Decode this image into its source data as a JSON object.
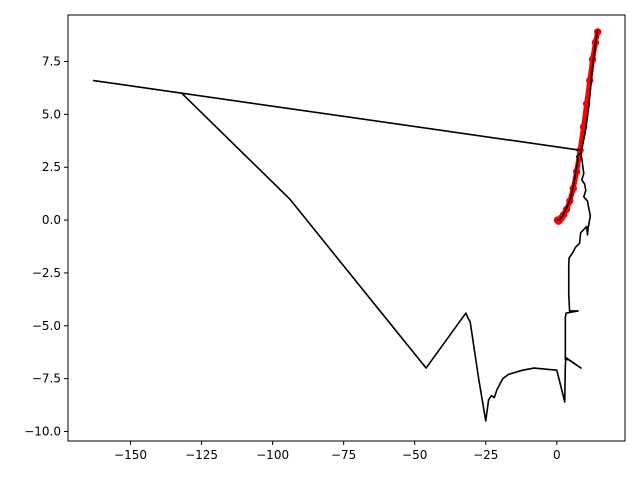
{
  "chart_data": {
    "type": "line",
    "title": "",
    "xlabel": "",
    "ylabel": "",
    "xlim": [
      -172,
      24
    ],
    "ylim": [
      -10.45,
      9.7
    ],
    "grid": false,
    "x_ticks": [
      -150,
      -125,
      -100,
      -75,
      -50,
      -25,
      0
    ],
    "x_tick_labels": [
      "−150",
      "−125",
      "−100",
      "−75",
      "−50",
      "−25",
      "0"
    ],
    "y_ticks": [
      -10.0,
      -7.5,
      -5.0,
      -2.5,
      0.0,
      2.5,
      5.0,
      7.5
    ],
    "y_tick_labels": [
      "−10.0",
      "−7.5",
      "−5.0",
      "−2.5",
      "0.0",
      "2.5",
      "5.0",
      "7.5"
    ],
    "series": [
      {
        "color": "#ff0000",
        "kind": "thick-line-with-markers",
        "points": [
          [
            0.2,
            0.0
          ],
          [
            0.6,
            -0.05
          ],
          [
            1.0,
            0.0
          ],
          [
            1.6,
            0.1
          ],
          [
            2.4,
            0.25
          ],
          [
            3.4,
            0.5
          ],
          [
            4.6,
            0.9
          ],
          [
            5.8,
            1.5
          ],
          [
            7.0,
            2.3
          ],
          [
            8.2,
            3.3
          ],
          [
            9.4,
            4.4
          ],
          [
            10.5,
            5.5
          ],
          [
            11.6,
            6.6
          ],
          [
            12.6,
            7.6
          ],
          [
            13.6,
            8.4
          ],
          [
            14.4,
            8.9
          ]
        ]
      },
      {
        "color": "#000000",
        "kind": "line",
        "points": [
          [
            0.0,
            0.0
          ],
          [
            1.0,
            0.0
          ],
          [
            2.0,
            0.2
          ],
          [
            3.5,
            0.6
          ],
          [
            4.8,
            1.0
          ],
          [
            5.8,
            1.6
          ],
          [
            6.7,
            2.3
          ],
          [
            7.5,
            2.9
          ],
          [
            7.0,
            3.0
          ],
          [
            8.5,
            3.2
          ],
          [
            9.5,
            2.2
          ],
          [
            8.8,
            1.9
          ],
          [
            9.8,
            1.7
          ],
          [
            10.2,
            1.4
          ],
          [
            9.5,
            1.1
          ],
          [
            10.8,
            0.9
          ],
          [
            11.2,
            0.6
          ],
          [
            11.8,
            0.2
          ],
          [
            11.0,
            -0.4
          ],
          [
            10.8,
            -0.7
          ],
          [
            10.5,
            -0.3
          ],
          [
            9.8,
            -0.4
          ],
          [
            8.4,
            -0.6
          ],
          [
            8.0,
            -1.1
          ],
          [
            6.5,
            -1.3
          ],
          [
            5.8,
            -1.5
          ],
          [
            4.3,
            -1.8
          ],
          [
            4.2,
            -2.2
          ],
          [
            4.2,
            -3.5
          ],
          [
            4.5,
            -4.3
          ],
          [
            7.5,
            -4.3
          ],
          [
            3.3,
            -4.4
          ],
          [
            3.0,
            -4.6
          ],
          [
            3.0,
            -6.6
          ],
          [
            4.1,
            -6.6
          ],
          [
            8.5,
            -7.0
          ],
          [
            3.2,
            -6.5
          ],
          [
            3.0,
            -6.9
          ],
          [
            2.8,
            -8.6
          ],
          [
            0.0,
            -7.1
          ],
          [
            -8.0,
            -7.0
          ],
          [
            -12.0,
            -7.1
          ],
          [
            -17.0,
            -7.3
          ],
          [
            -19.0,
            -7.5
          ],
          [
            -21.0,
            -8.0
          ],
          [
            -22.0,
            -8.4
          ],
          [
            -23.0,
            -8.3
          ],
          [
            -24.0,
            -8.5
          ],
          [
            -25.0,
            -9.5
          ],
          [
            -27.5,
            -7.5
          ],
          [
            -30.5,
            -4.8
          ],
          [
            -31.0,
            -4.7
          ],
          [
            -32.0,
            -4.4
          ],
          [
            -46.0,
            -7.0
          ],
          [
            -94.0,
            1.0
          ],
          [
            -132.0,
            6.0
          ],
          [
            -163.0,
            6.6
          ],
          [
            8.5,
            3.3
          ],
          [
            9.0,
            3.5
          ],
          [
            9.8,
            4.0
          ],
          [
            10.5,
            4.6
          ],
          [
            11.2,
            5.3
          ],
          [
            11.8,
            6.1
          ],
          [
            12.3,
            6.9
          ],
          [
            12.8,
            7.5
          ],
          [
            13.3,
            8.0
          ],
          [
            13.8,
            8.5
          ],
          [
            14.3,
            8.95
          ],
          [
            14.6,
            9.0
          ]
        ]
      }
    ]
  }
}
